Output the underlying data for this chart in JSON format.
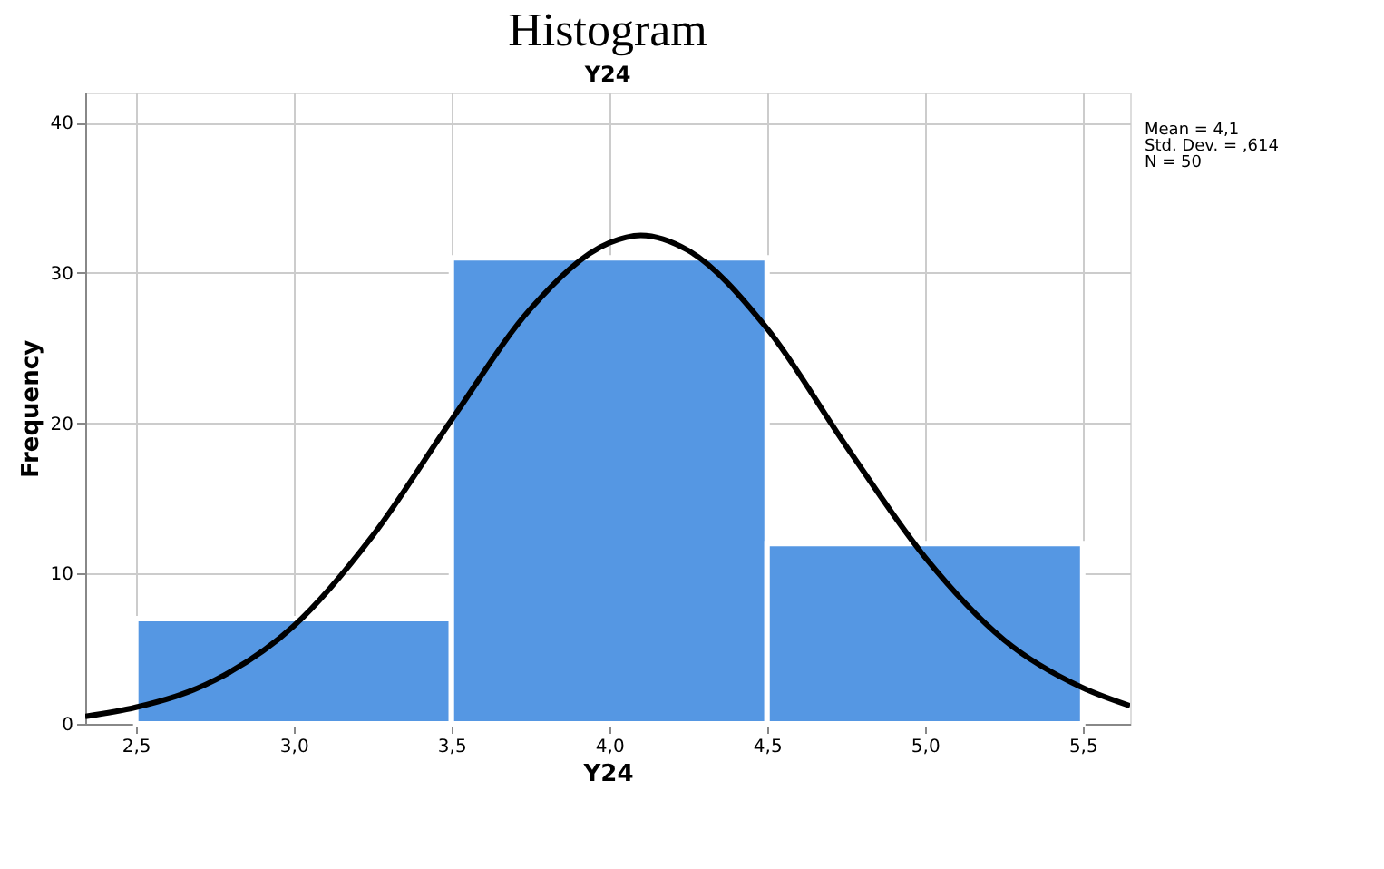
{
  "chart_data": {
    "type": "histogram",
    "title": "Histogram",
    "subtitle": "Y24",
    "xlabel": "Y24",
    "ylabel": "Frequency",
    "bins": [
      2.5,
      3.5,
      4.5,
      5.5
    ],
    "values": [
      7,
      31,
      12
    ],
    "color": "#5597e3",
    "series": [
      {
        "type": "line",
        "color": "#000000",
        "x": [
          2.34,
          2.5,
          2.75,
          3.0,
          3.25,
          3.5,
          3.75,
          4.0,
          4.1,
          4.25,
          4.5,
          4.75,
          5.0,
          5.25,
          5.5,
          5.65
        ],
        "values": [
          0.5,
          1.1,
          2.9,
          6.5,
          12.5,
          20.2,
          27.6,
          32.0,
          32.5,
          31.5,
          26.3,
          18.5,
          11.1,
          5.6,
          2.4,
          1.2
        ]
      }
    ],
    "xlim": [
      2.34,
      5.65
    ],
    "ylim": [
      0,
      42
    ],
    "xticks": [
      {
        "value": 2.5,
        "label": "2,5"
      },
      {
        "value": 3.0,
        "label": "3,0"
      },
      {
        "value": 3.5,
        "label": "3,5"
      },
      {
        "value": 4.0,
        "label": "4,0"
      },
      {
        "value": 4.5,
        "label": "4,5"
      },
      {
        "value": 5.0,
        "label": "5,0"
      },
      {
        "value": 5.5,
        "label": "5,5"
      }
    ],
    "yticks": [
      0,
      10,
      20,
      30,
      40
    ],
    "grid": true,
    "annotations": [
      "Mean = 4,1",
      "Std. Dev. = ,614",
      "N = 50"
    ]
  }
}
